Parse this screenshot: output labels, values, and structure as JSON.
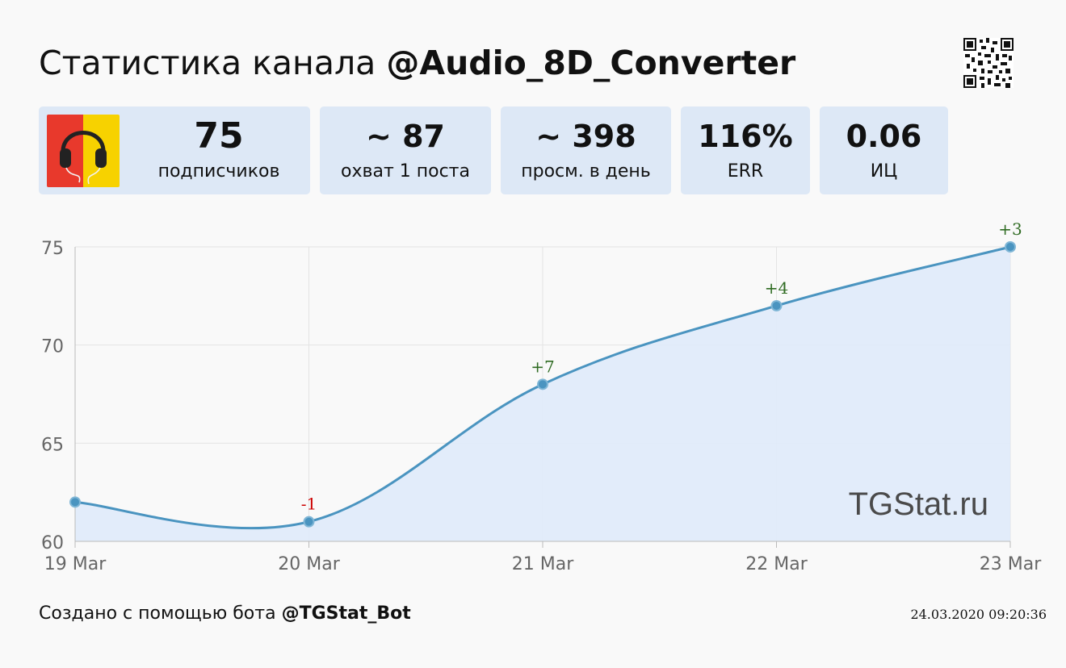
{
  "header": {
    "title_prefix": "Статистика канала",
    "channel": "@Audio_8D_Converter"
  },
  "stats": [
    {
      "value": "75",
      "label": "подписчиков"
    },
    {
      "value": "~ 87",
      "label": "охват 1 поста"
    },
    {
      "value": "~ 398",
      "label": "просм. в день"
    },
    {
      "value": "116%",
      "label": "ERR"
    },
    {
      "value": "0.06",
      "label": "ИЦ"
    }
  ],
  "chart_data": {
    "type": "area",
    "x": [
      "19 Mar",
      "20 Mar",
      "21 Mar",
      "22 Mar",
      "23 Mar"
    ],
    "series": [
      {
        "values": [
          62,
          61,
          68,
          72,
          75
        ]
      }
    ],
    "point_labels": [
      "",
      "-1",
      "+7",
      "+4",
      "+3"
    ],
    "yticks": [
      60,
      65,
      70,
      75
    ],
    "ylim": [
      60,
      75
    ],
    "grid": true,
    "colors": {
      "line": "#4a94c0",
      "fill": "#dfeafa",
      "positive": "#2f6b22",
      "negative": "#cc0000"
    },
    "watermark": "TGStat.ru"
  },
  "footer": {
    "prefix": "Создано с помощью бота",
    "bot": "@TGStat_Bot",
    "timestamp": "24.03.2020 09:20:36"
  }
}
